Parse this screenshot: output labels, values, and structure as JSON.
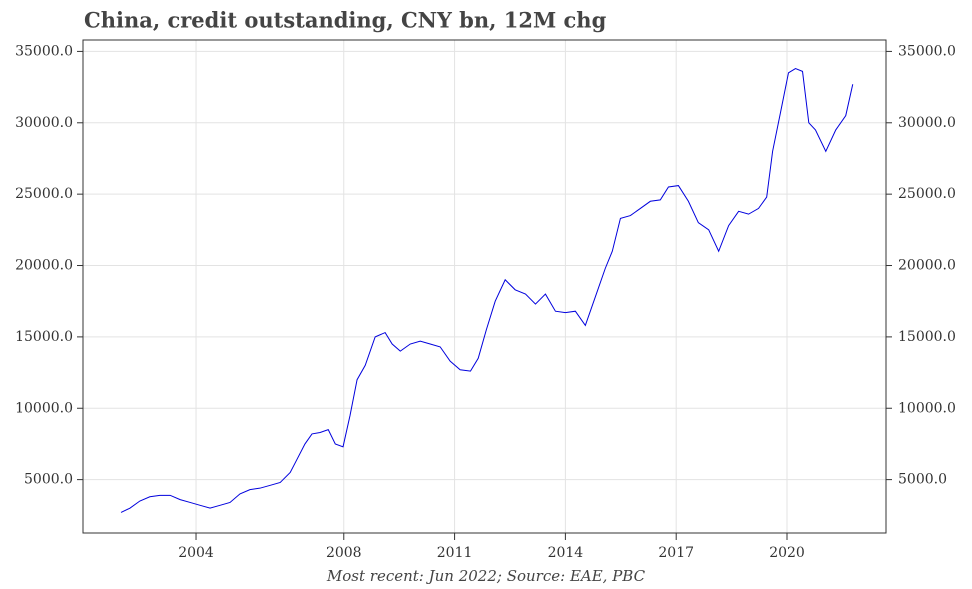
{
  "chart_data": {
    "type": "line",
    "title": "China, credit outstanding, CNY bn, 12M chg",
    "note": "Most recent: Jun 2022; Source: EAE, PBC",
    "x": [
      2001.97,
      2002.21,
      2002.48,
      2002.75,
      2003.02,
      2003.3,
      2003.57,
      2003.84,
      2004.11,
      2004.38,
      2004.65,
      2004.92,
      2005.19,
      2005.46,
      2005.73,
      2006.01,
      2006.28,
      2006.55,
      2006.71,
      2006.95,
      2007.14,
      2007.36,
      2007.58,
      2007.77,
      2007.98,
      2008.17,
      2008.36,
      2008.58,
      2008.85,
      2009.12,
      2009.31,
      2009.53,
      2009.8,
      2010.07,
      2010.34,
      2010.61,
      2010.88,
      2011.15,
      2011.43,
      2011.64,
      2011.86,
      2012.1,
      2012.37,
      2012.64,
      2012.92,
      2013.19,
      2013.46,
      2013.73,
      2014.0,
      2014.27,
      2014.54,
      2014.81,
      2015.08,
      2015.27,
      2015.49,
      2015.76,
      2016.03,
      2016.3,
      2016.57,
      2016.79,
      2017.06,
      2017.33,
      2017.6,
      2017.88,
      2018.15,
      2018.42,
      2018.69,
      2018.96,
      2019.23,
      2019.45,
      2019.61,
      2019.83,
      2020.04,
      2020.23,
      2020.42,
      2020.59,
      2020.77,
      2021.05,
      2021.32,
      2021.59,
      2021.78
    ],
    "series": [
      {
        "name": "Credit outstanding, 12M chg",
        "color": "#0000dd",
        "values": [
          2700,
          3000,
          3500,
          3800,
          3900,
          3900,
          3600,
          3400,
          3200,
          3000,
          3200,
          3400,
          4000,
          4300,
          4400,
          4600,
          4800,
          5500,
          6300,
          7500,
          8200,
          8300,
          8500,
          7500,
          7300,
          9500,
          12000,
          13000,
          15000,
          15300,
          14500,
          14000,
          14500,
          14700,
          14500,
          14300,
          13300,
          12700,
          12600,
          13500,
          15500,
          17500,
          19000,
          18300,
          18000,
          17300,
          18000,
          16800,
          16700,
          16800,
          15800,
          17800,
          19800,
          21000,
          23300,
          23500,
          24000,
          24500,
          24600,
          25500,
          25600,
          24500,
          23000,
          22500,
          21000,
          22800,
          23800,
          23600,
          24000,
          24800,
          28000,
          30800,
          33500,
          33800,
          33600,
          30000,
          29500,
          28000,
          29500,
          30500,
          32700
        ]
      }
    ],
    "xlim": [
      2000.94,
      2022.68
    ],
    "xticks": [
      2004,
      2008,
      2011,
      2014,
      2017,
      2020
    ],
    "ylim": [
      1260,
      35800
    ],
    "yticks": [
      {
        "value": 5000,
        "label": "5000.0"
      },
      {
        "value": 10000,
        "label": "10000.0"
      },
      {
        "value": 15000,
        "label": "15000.0"
      },
      {
        "value": 20000,
        "label": "20000.0"
      },
      {
        "value": 25000,
        "label": "25000.0"
      },
      {
        "value": 30000,
        "label": "30000.0"
      },
      {
        "value": 35000,
        "label": "35000.0"
      }
    ],
    "grid": true
  }
}
